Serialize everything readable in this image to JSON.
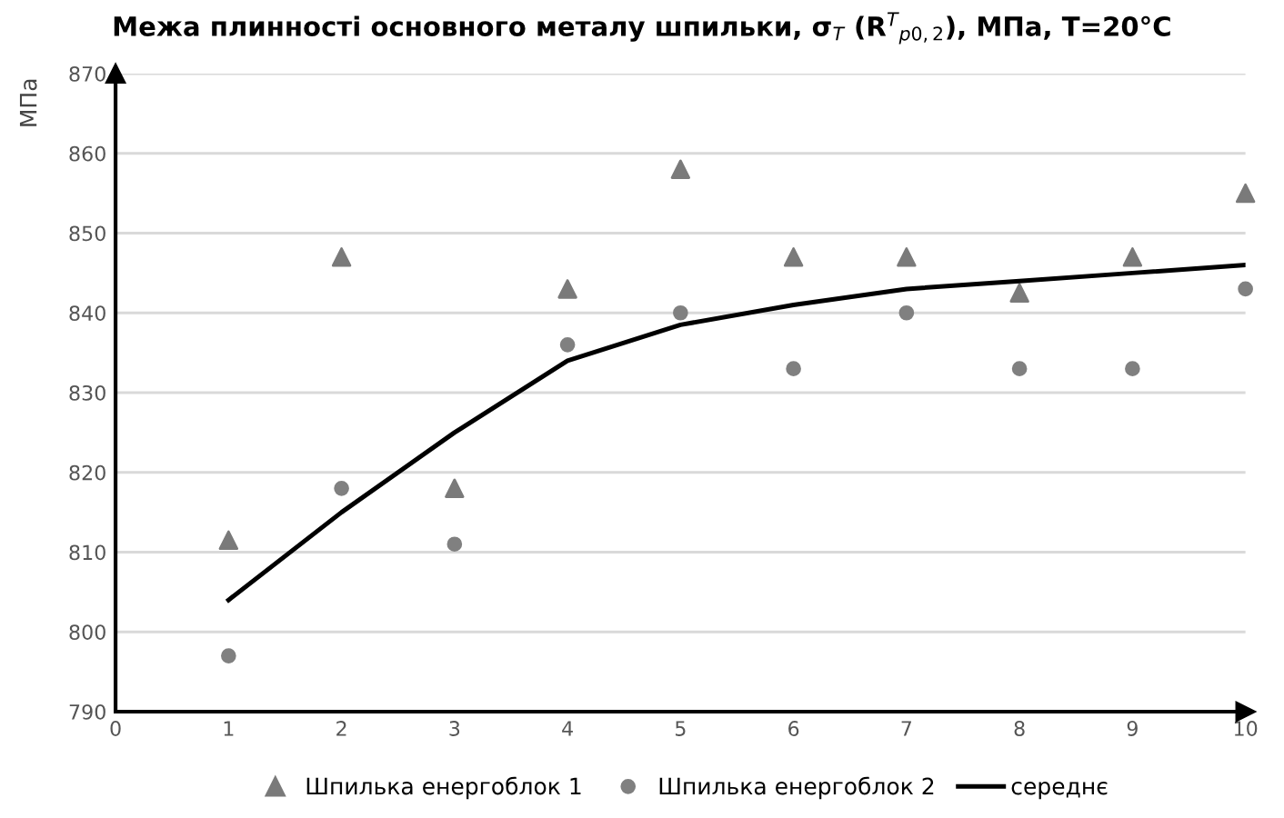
{
  "chart_data": {
    "type": "scatter",
    "title": "Межа плинності основного металу шпильки, σ$_{T}$ (R$^{T}$$_{p0,2}$), МПа, T=20°C",
    "ylabel": "МПа",
    "x": [
      1,
      2,
      3,
      4,
      5,
      6,
      7,
      8,
      9,
      10
    ],
    "series": [
      {
        "name": "Шпилька енергоблок 1",
        "marker": "triangle",
        "color": "#7a7a7a",
        "values": [
          811.5,
          847,
          818,
          843,
          858,
          847,
          847,
          842.5,
          847,
          855
        ]
      },
      {
        "name": "Шпилька енергоблок 2",
        "marker": "circle",
        "color": "#808080",
        "values": [
          797,
          818,
          811,
          836,
          840,
          833,
          840,
          833,
          833,
          843
        ]
      },
      {
        "name": "середнє",
        "type": "line",
        "marker": "none",
        "line_style": "solid",
        "color": "#000000",
        "values": [
          804,
          815,
          825,
          834,
          838.5,
          841,
          843,
          844,
          845,
          846
        ]
      }
    ],
    "xlim": [
      0,
      10
    ],
    "xticks": [
      0,
      1,
      2,
      3,
      4,
      5,
      6,
      7,
      8,
      9,
      10
    ],
    "ylim": [
      790,
      870
    ],
    "yticks": [
      790,
      800,
      810,
      820,
      830,
      840,
      850,
      860,
      870
    ],
    "grid": "y",
    "legend": "bottom"
  }
}
